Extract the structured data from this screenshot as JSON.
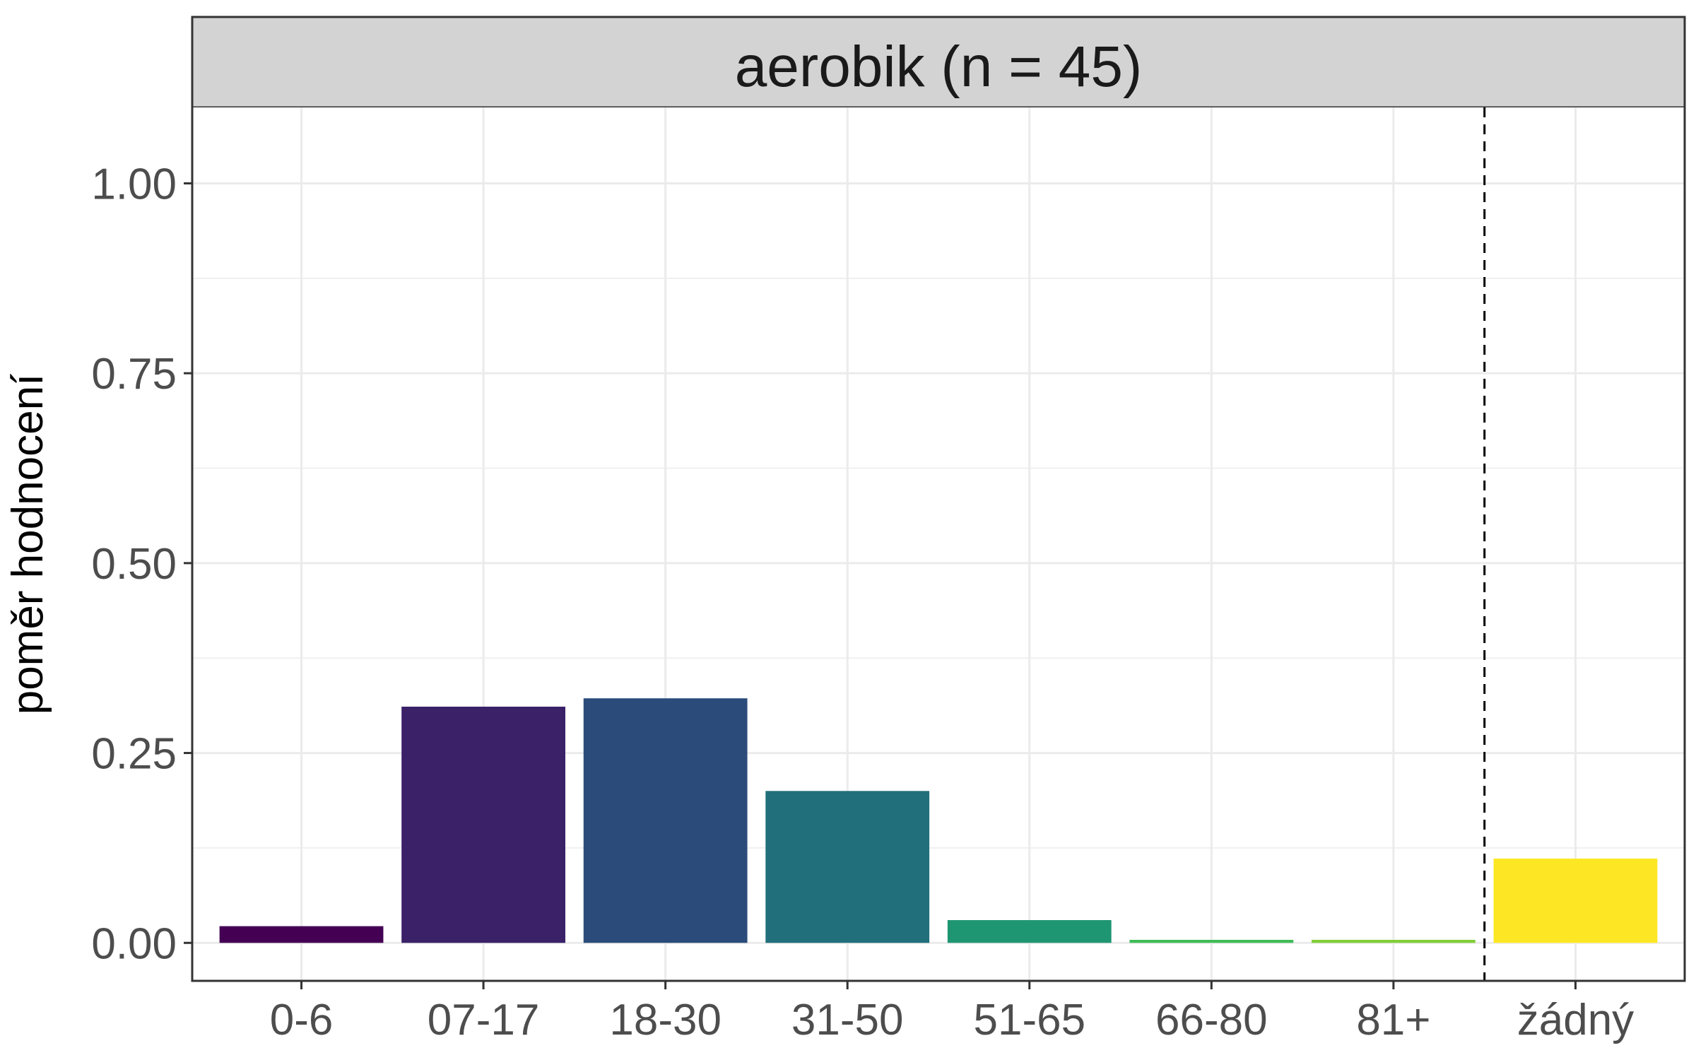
{
  "chart_data": {
    "type": "bar",
    "title": "aerobik (n = 45)",
    "xlabel": "",
    "ylabel": "poměr hodnocení",
    "categories": [
      "0-6",
      "07-17",
      "18-30",
      "31-50",
      "51-65",
      "66-80",
      "81+",
      "žádný"
    ],
    "values": [
      0.022,
      0.311,
      0.322,
      0.2,
      0.03,
      0.004,
      0.004,
      0.111
    ],
    "colors": [
      "#440154",
      "#3a2168",
      "#2b4c7a",
      "#216f7b",
      "#1f9672",
      "#3fbb57",
      "#80cf37",
      "#fde725"
    ],
    "ylim": [
      -0.05,
      1.1
    ],
    "yticks": [
      "0.00",
      "0.25",
      "0.50",
      "0.75",
      "1.00"
    ],
    "ytick_values": [
      0,
      0.25,
      0.5,
      0.75,
      1.0
    ],
    "reference_line": {
      "between": [
        "81+",
        "žádný"
      ],
      "style": "dashed"
    },
    "grid": true,
    "legend": "none"
  }
}
